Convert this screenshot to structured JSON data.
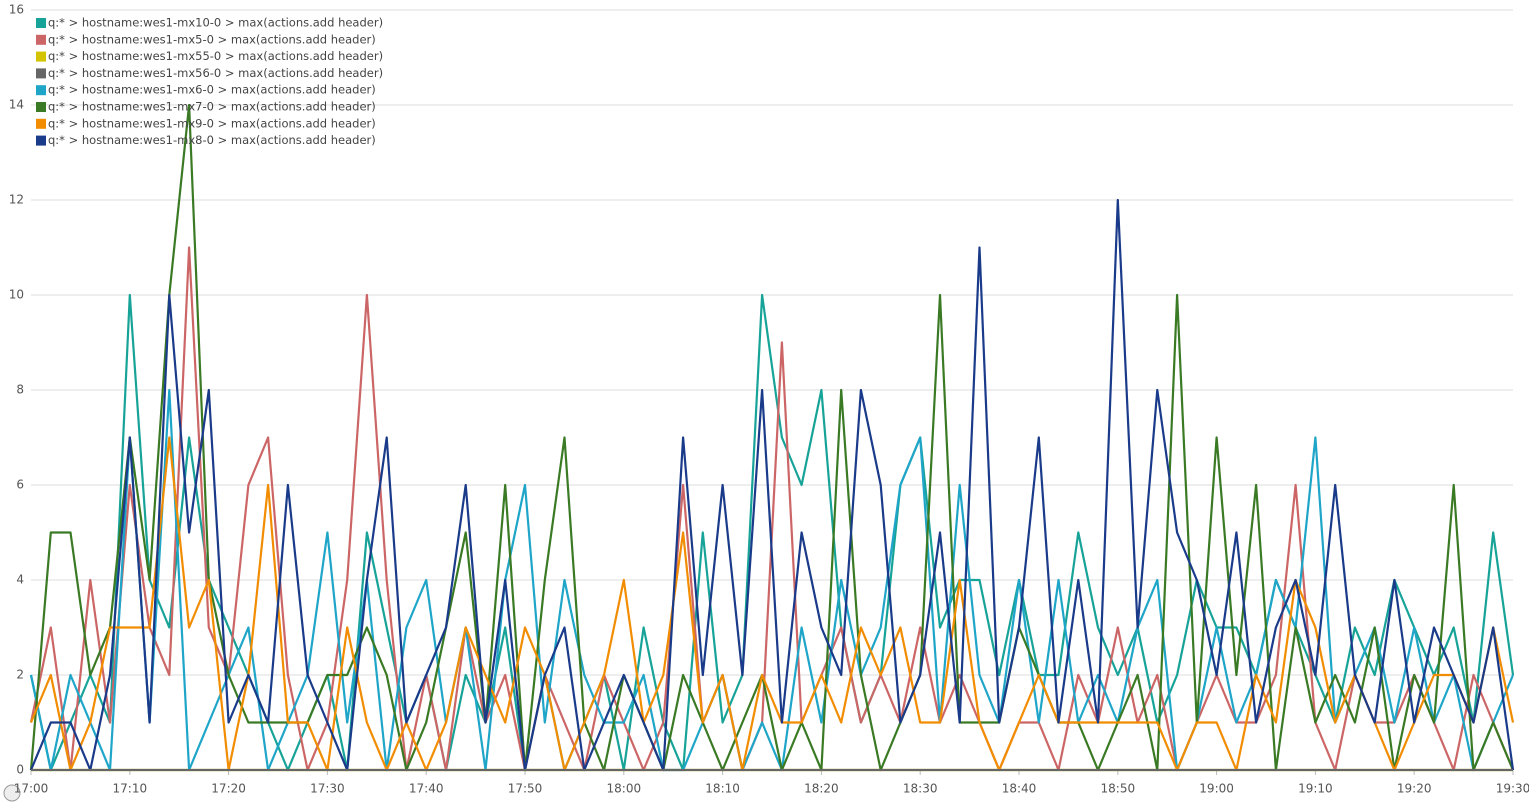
{
  "chart_data": {
    "type": "line",
    "x": [
      "17:00",
      "17:02",
      "17:04",
      "17:06",
      "17:08",
      "17:10",
      "17:12",
      "17:14",
      "17:16",
      "17:18",
      "17:20",
      "17:22",
      "17:24",
      "17:26",
      "17:28",
      "17:30",
      "17:32",
      "17:34",
      "17:36",
      "17:38",
      "17:40",
      "17:42",
      "17:44",
      "17:46",
      "17:48",
      "17:50",
      "17:52",
      "17:54",
      "17:56",
      "17:58",
      "18:00",
      "18:02",
      "18:04",
      "18:06",
      "18:08",
      "18:10",
      "18:12",
      "18:14",
      "18:16",
      "18:18",
      "18:20",
      "18:22",
      "18:24",
      "18:26",
      "18:28",
      "18:30",
      "18:32",
      "18:34",
      "18:36",
      "18:38",
      "18:40",
      "18:42",
      "18:44",
      "18:46",
      "18:48",
      "18:50",
      "18:52",
      "18:54",
      "18:56",
      "18:58",
      "19:00",
      "19:02",
      "19:04",
      "19:06",
      "19:08",
      "19:10",
      "19:12",
      "19:14",
      "19:16",
      "19:18",
      "19:20",
      "19:22",
      "19:24",
      "19:26",
      "19:28",
      "19:30"
    ],
    "xlim": [
      "17:00",
      "19:30"
    ],
    "xticks": [
      "17:00",
      "17:10",
      "17:20",
      "17:30",
      "17:40",
      "17:50",
      "18:00",
      "18:10",
      "18:20",
      "18:30",
      "18:40",
      "18:50",
      "19:00",
      "19:10",
      "19:20",
      "19:30"
    ],
    "ylim": [
      0,
      16
    ],
    "yticks": [
      0,
      2,
      4,
      6,
      8,
      10,
      12,
      14,
      16
    ],
    "grid": true,
    "legend": "top-left",
    "series": [
      {
        "name": "q:* > hostname:wes1-mx10-0 > max(actions.add header)",
        "color": "#17a398",
        "values": [
          2,
          0,
          1,
          2,
          1,
          10,
          4,
          3,
          7,
          4,
          3,
          2,
          1,
          0,
          1,
          2,
          0,
          5,
          3,
          1,
          2,
          0,
          2,
          1,
          3,
          0,
          2,
          0,
          1,
          2,
          0,
          3,
          1,
          0,
          5,
          1,
          2,
          10,
          7,
          6,
          8,
          3,
          1,
          2,
          6,
          7,
          3,
          4,
          4,
          2,
          4,
          2,
          2,
          5,
          3,
          2,
          3,
          1,
          2,
          4,
          3,
          3,
          2,
          4,
          3,
          2,
          1,
          3,
          2,
          4,
          3,
          2,
          3,
          1,
          5,
          2
        ]
      },
      {
        "name": "q:* > hostname:wes1-mx5-0 > max(actions.add header)",
        "color": "#cc6666",
        "values": [
          1,
          3,
          0,
          4,
          1,
          6,
          3,
          2,
          11,
          3,
          2,
          6,
          7,
          2,
          0,
          1,
          4,
          10,
          4,
          0,
          2,
          0,
          3,
          1,
          2,
          0,
          2,
          1,
          0,
          2,
          1,
          0,
          1,
          6,
          1,
          2,
          0,
          1,
          9,
          1,
          2,
          3,
          1,
          2,
          1,
          3,
          1,
          2,
          1,
          0,
          1,
          1,
          0,
          2,
          1,
          3,
          1,
          2,
          0,
          1,
          2,
          1,
          1,
          2,
          6,
          1,
          0,
          2,
          1,
          1,
          2,
          1,
          0,
          2,
          1,
          0
        ]
      },
      {
        "name": "q:* > hostname:wes1-mx55-0 > max(actions.add header)",
        "color": "#d4c400",
        "values": [
          0,
          0,
          0,
          0,
          0,
          0,
          0,
          0,
          0,
          0,
          0,
          0,
          0,
          0,
          0,
          0,
          0,
          0,
          0,
          0,
          0,
          0,
          0,
          0,
          0,
          0,
          0,
          0,
          0,
          0,
          0,
          0,
          0,
          0,
          0,
          0,
          0,
          0,
          0,
          0,
          0,
          0,
          0,
          0,
          0,
          0,
          0,
          0,
          0,
          0,
          0,
          0,
          0,
          0,
          0,
          0,
          0,
          0,
          0,
          0,
          0,
          0,
          0,
          0,
          0,
          0,
          0,
          0,
          0,
          0,
          0,
          0,
          0,
          0,
          0,
          0
        ]
      },
      {
        "name": "q:* > hostname:wes1-mx56-0 > max(actions.add header)",
        "color": "#666666",
        "values": [
          0,
          0,
          0,
          0,
          0,
          0,
          0,
          0,
          0,
          0,
          0,
          0,
          0,
          0,
          0,
          0,
          0,
          0,
          0,
          0,
          0,
          0,
          0,
          0,
          0,
          0,
          0,
          0,
          0,
          0,
          0,
          0,
          0,
          0,
          0,
          0,
          0,
          0,
          0,
          0,
          0,
          0,
          0,
          0,
          0,
          0,
          0,
          0,
          0,
          0,
          0,
          0,
          0,
          0,
          0,
          0,
          0,
          0,
          0,
          0,
          0,
          0,
          0,
          0,
          0,
          0,
          0,
          0,
          0,
          0,
          0,
          0,
          0,
          0,
          0,
          0
        ]
      },
      {
        "name": "q:* > hostname:wes1-mx6-0 > max(actions.add header)",
        "color": "#1ea5c8",
        "values": [
          2,
          0,
          2,
          1,
          0,
          7,
          1,
          8,
          0,
          1,
          2,
          3,
          0,
          1,
          2,
          5,
          1,
          4,
          0,
          3,
          4,
          1,
          3,
          0,
          4,
          6,
          1,
          4,
          2,
          1,
          1,
          2,
          0,
          0,
          1,
          2,
          0,
          1,
          0,
          3,
          1,
          4,
          2,
          3,
          6,
          7,
          1,
          6,
          2,
          1,
          4,
          1,
          4,
          1,
          2,
          1,
          3,
          4,
          0,
          1,
          3,
          1,
          2,
          4,
          3,
          7,
          1,
          2,
          3,
          1,
          3,
          1,
          2,
          0,
          1,
          2
        ]
      },
      {
        "name": "q:* > hostname:wes1-mx7-0 > max(actions.add header)",
        "color": "#3a7a24",
        "values": [
          0,
          5,
          5,
          2,
          3,
          7,
          4,
          10,
          14,
          4,
          2,
          1,
          1,
          1,
          1,
          2,
          2,
          3,
          2,
          0,
          1,
          3,
          5,
          1,
          6,
          0,
          4,
          7,
          1,
          0,
          2,
          1,
          0,
          2,
          1,
          0,
          1,
          2,
          0,
          1,
          0,
          8,
          2,
          0,
          1,
          2,
          10,
          1,
          1,
          1,
          3,
          2,
          1,
          1,
          0,
          1,
          2,
          0,
          10,
          1,
          7,
          2,
          6,
          0,
          3,
          1,
          2,
          1,
          3,
          0,
          2,
          1,
          6,
          0,
          1,
          0
        ]
      },
      {
        "name": "q:* > hostname:wes1-mx9-0 > max(actions.add header)",
        "color": "#f28c00",
        "values": [
          1,
          2,
          0,
          1,
          3,
          3,
          3,
          7,
          3,
          4,
          0,
          2,
          6,
          1,
          1,
          0,
          3,
          1,
          0,
          1,
          0,
          1,
          3,
          2,
          1,
          3,
          2,
          0,
          1,
          2,
          4,
          1,
          2,
          5,
          1,
          2,
          0,
          2,
          1,
          1,
          2,
          1,
          3,
          2,
          3,
          1,
          1,
          4,
          1,
          0,
          1,
          2,
          1,
          1,
          1,
          1,
          1,
          1,
          0,
          1,
          1,
          0,
          2,
          1,
          4,
          3,
          1,
          2,
          1,
          0,
          1,
          2,
          2,
          1,
          3,
          1
        ]
      },
      {
        "name": "q:* > hostname:wes1-mx8-0 > max(actions.add header)",
        "color": "#1a3a8a",
        "values": [
          0,
          1,
          1,
          0,
          2,
          7,
          1,
          10,
          5,
          8,
          1,
          2,
          1,
          6,
          2,
          1,
          0,
          4,
          7,
          1,
          2,
          3,
          6,
          1,
          4,
          0,
          2,
          3,
          0,
          1,
          2,
          1,
          0,
          7,
          2,
          6,
          2,
          8,
          1,
          5,
          3,
          2,
          8,
          6,
          1,
          2,
          5,
          1,
          11,
          1,
          3,
          7,
          1,
          4,
          1,
          12,
          3,
          8,
          5,
          4,
          2,
          5,
          1,
          3,
          4,
          2,
          6,
          2,
          1,
          4,
          1,
          3,
          2,
          1,
          3,
          0
        ]
      }
    ]
  }
}
